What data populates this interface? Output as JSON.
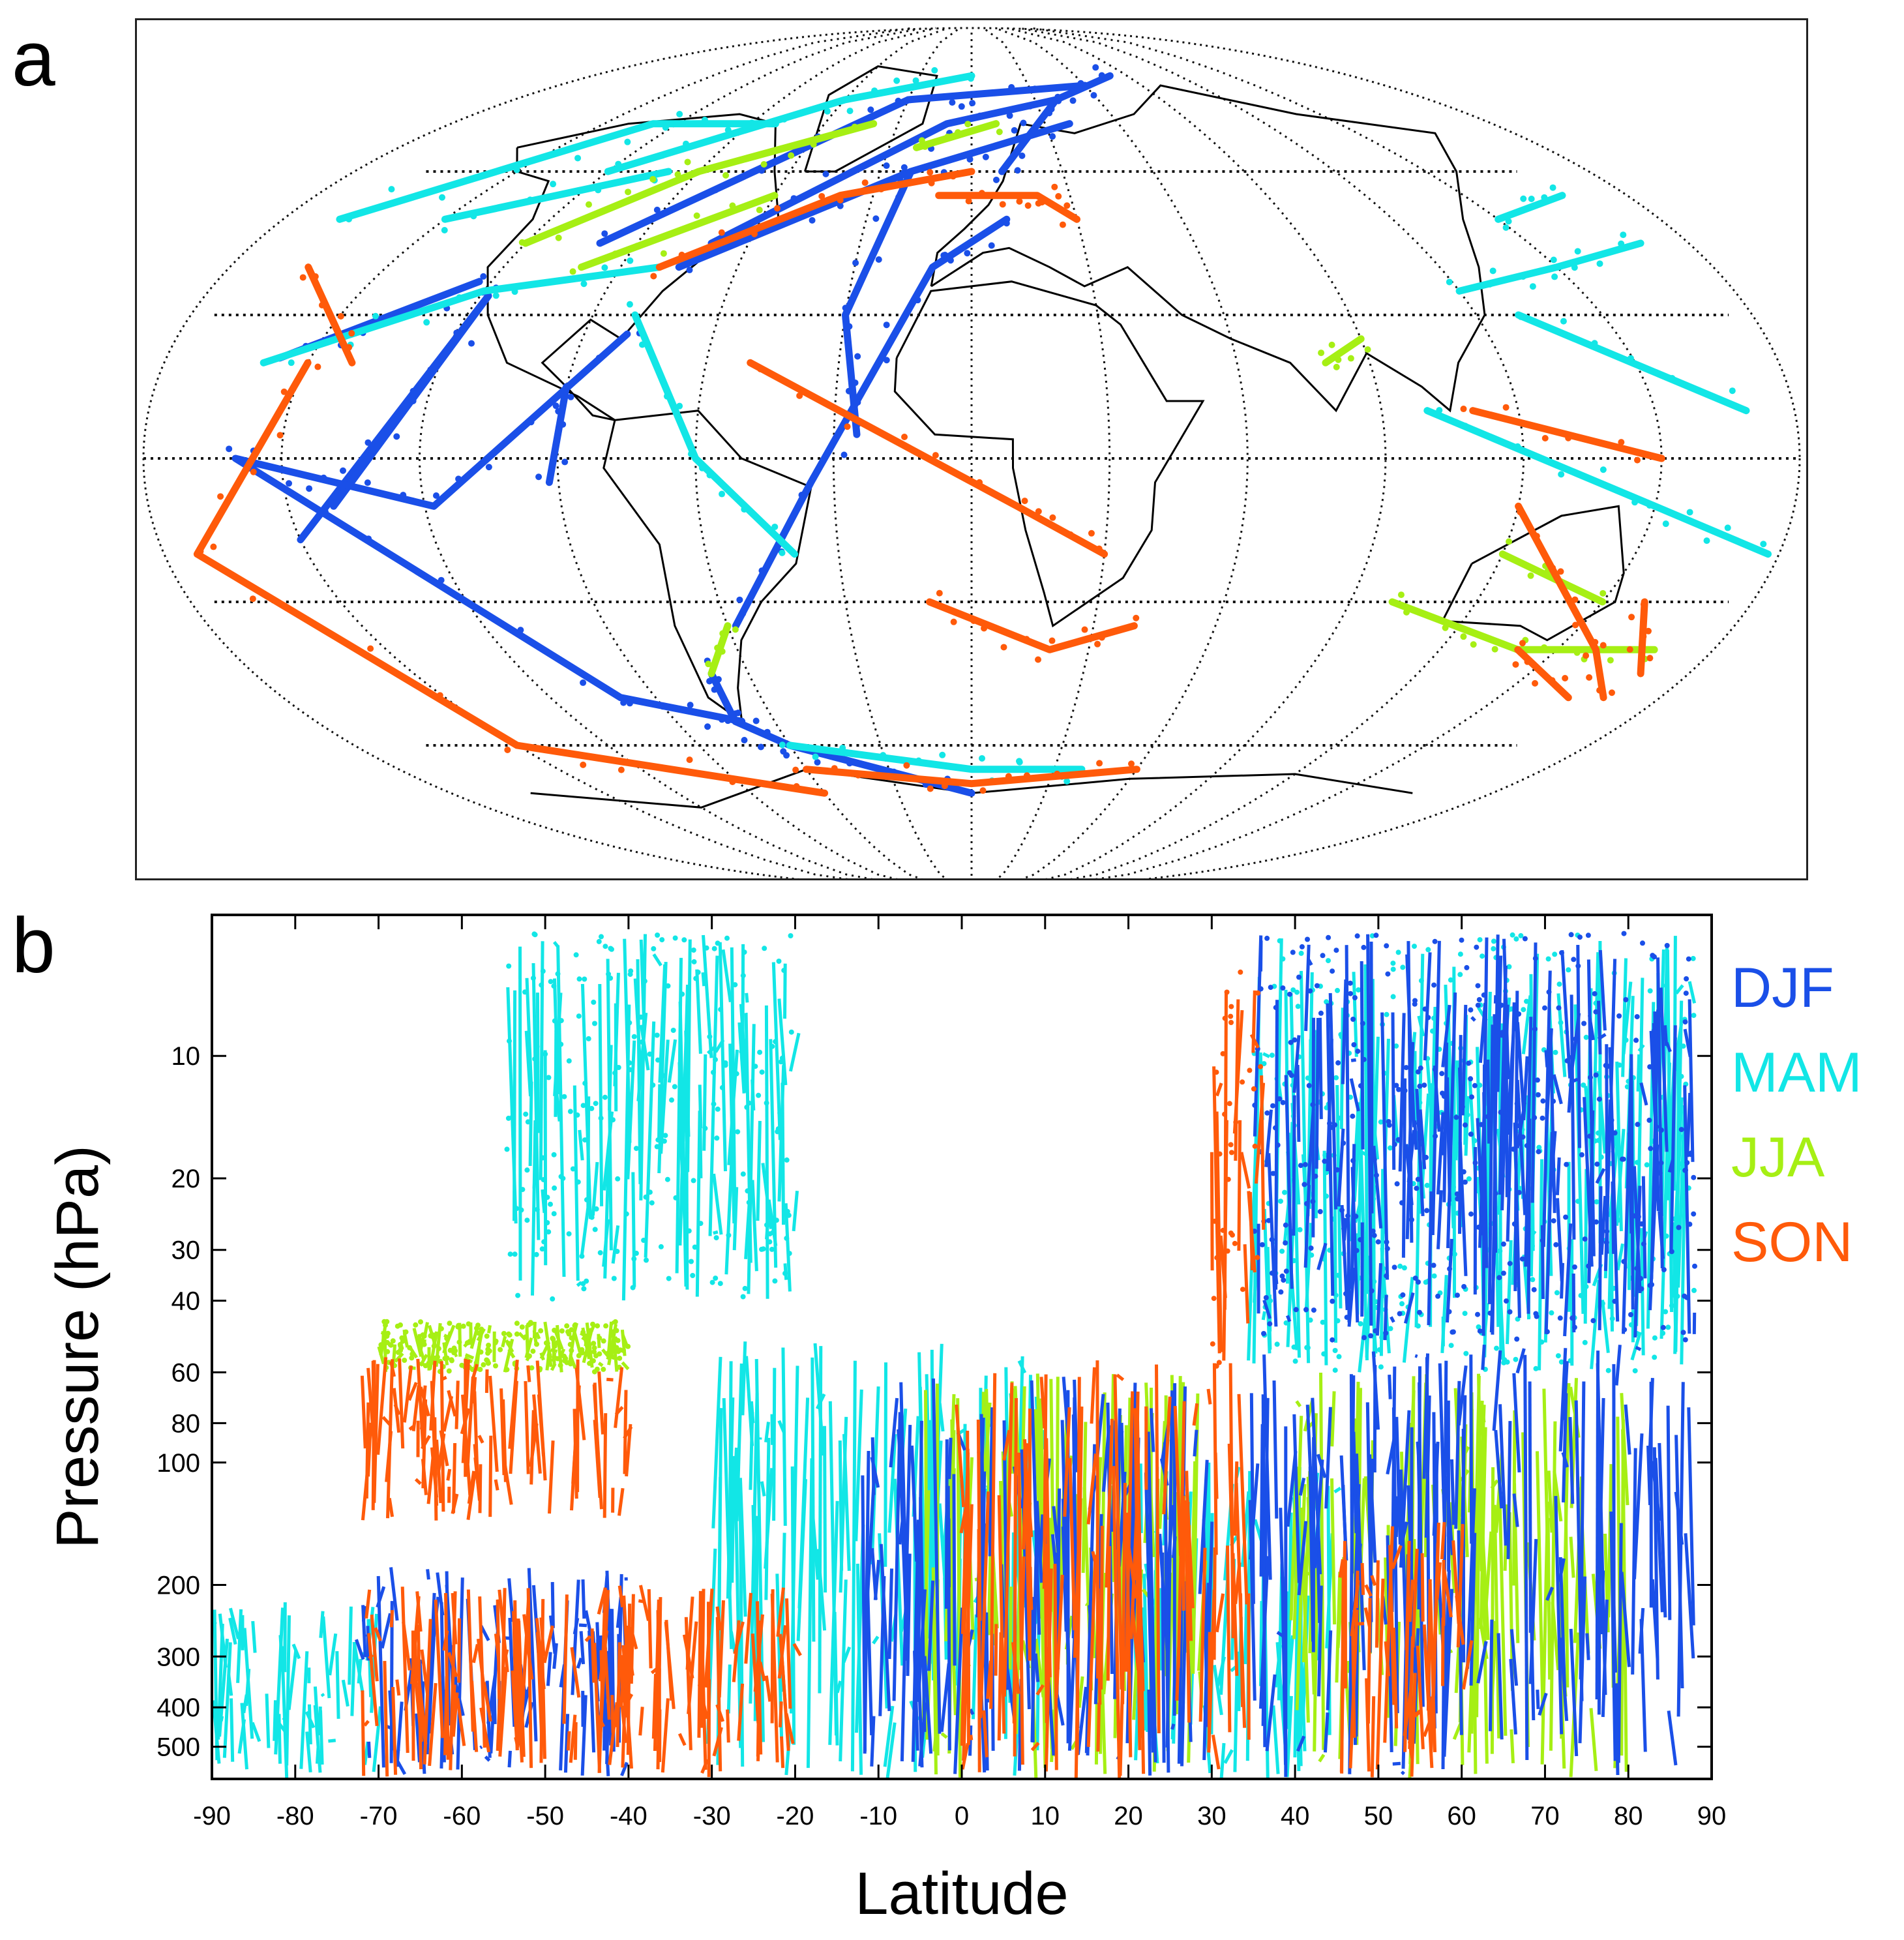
{
  "panels": {
    "a": "a",
    "b": "b"
  },
  "colors": {
    "DJF": "#1a4fe8",
    "MAM": "#12e6e6",
    "JJA": "#a6ef14",
    "SON": "#ff5a0a",
    "grid": "#111111",
    "coast": "#000000"
  },
  "chart_data": [
    {
      "panel": "a",
      "type": "scatter",
      "title": "",
      "xlabel": "",
      "ylabel": "",
      "projection": "Robinson",
      "xlim": [
        -180,
        180
      ],
      "ylim": [
        -90,
        90
      ],
      "graticule_lon": [
        -150,
        -120,
        -90,
        -60,
        -30,
        0,
        30,
        60,
        90,
        120,
        150
      ],
      "graticule_lat": [
        -60,
        -30,
        0,
        30,
        60
      ],
      "series": [
        {
          "name": "DJF",
          "tracks": [
            [
              [
                -123,
                37
              ],
              [
                -157,
                21
              ]
            ],
            [
              [
                -118,
                34
              ],
              [
                -150,
                -17
              ]
            ],
            [
              [
                -118,
                34
              ],
              [
                -140,
                -10
              ]
            ],
            [
              [
                -80,
                26
              ],
              [
                -118,
                -10
              ],
              [
                -160,
                0
              ],
              [
                -100,
                -50
              ],
              [
                -70,
                -55
              ]
            ],
            [
              [
                -75,
                40
              ],
              [
                -20,
                60
              ],
              [
                40,
                70
              ]
            ],
            [
              [
                -70,
                45
              ],
              [
                -10,
                70
              ],
              [
                40,
                75
              ]
            ],
            [
              [
                -100,
                45
              ],
              [
                -30,
                75
              ],
              [
                60,
                78
              ]
            ],
            [
              [
                -70,
                -45
              ],
              [
                -72,
                -55
              ],
              [
                -60,
                -60
              ],
              [
                0,
                -70
              ]
            ],
            [
              [
                -58,
                -35
              ],
              [
                -35,
                -5
              ],
              [
                -10,
                40
              ],
              [
                10,
                50
              ]
            ],
            [
              [
                -90,
                15
              ],
              [
                -92,
                -5
              ]
            ],
            [
              [
                10,
                60
              ],
              [
                40,
                75
              ],
              [
                80,
                80
              ]
            ],
            [
              [
                -20,
                60
              ],
              [
                -30,
                30
              ],
              [
                -25,
                5
              ]
            ]
          ]
        },
        {
          "name": "MAM",
          "tracks": [
            [
              [
                -160,
                20
              ],
              [
                -120,
                35
              ],
              [
                -80,
                40
              ]
            ],
            [
              [
                -180,
                50
              ],
              [
                -130,
                70
              ],
              [
                -80,
                70
              ]
            ],
            [
              [
                120,
                35
              ],
              [
                150,
                40
              ],
              [
                180,
                45
              ]
            ],
            [
              [
                130,
                30
              ],
              [
                170,
                10
              ]
            ],
            [
              [
                -150,
                50
              ],
              [
                -100,
                60
              ]
            ],
            [
              [
                -60,
                -60
              ],
              [
                0,
                -65
              ],
              [
                40,
                -65
              ]
            ],
            [
              [
                -80,
                30
              ],
              [
                -60,
                0
              ],
              [
                -40,
                -20
              ]
            ],
            [
              [
                100,
                10
              ],
              [
                150,
                -10
              ],
              [
                180,
                -20
              ]
            ],
            [
              [
                -120,
                60
              ],
              [
                -60,
                75
              ],
              [
                0,
                80
              ]
            ],
            [
              [
                150,
                50
              ],
              [
                180,
                55
              ]
            ]
          ]
        },
        {
          "name": "JJA",
          "tracks": [
            [
              [
                -120,
                45
              ],
              [
                -90,
                60
              ],
              [
                -40,
                70
              ]
            ],
            [
              [
                -60,
                -35
              ],
              [
                -70,
                -45
              ]
            ],
            [
              [
                100,
                -30
              ],
              [
                140,
                -40
              ],
              [
                175,
                -40
              ]
            ],
            [
              [
                120,
                -20
              ],
              [
                150,
                -30
              ]
            ],
            [
              [
                -20,
                65
              ],
              [
                10,
                70
              ]
            ],
            [
              [
                80,
                20
              ],
              [
                90,
                25
              ]
            ],
            [
              [
                -100,
                40
              ],
              [
                -60,
                55
              ]
            ]
          ]
        },
        {
          "name": "SON",
          "tracks": [
            [
              [
                -150,
                20
              ],
              [
                -175,
                -20
              ],
              [
                -150,
                -60
              ],
              [
                -60,
                -70
              ]
            ],
            [
              [
                -60,
                -65
              ],
              [
                0,
                -68
              ],
              [
                60,
                -65
              ]
            ],
            [
              [
                -50,
                20
              ],
              [
                10,
                -10
              ],
              [
                30,
                -20
              ]
            ],
            [
              [
                -10,
                55
              ],
              [
                20,
                55
              ],
              [
                30,
                50
              ]
            ],
            [
              [
                -80,
                40
              ],
              [
                -40,
                55
              ],
              [
                0,
                60
              ]
            ],
            [
              [
                -10,
                -30
              ],
              [
                20,
                -40
              ],
              [
                40,
                -35
              ]
            ],
            [
              [
                160,
                -30
              ],
              [
                180,
                -45
              ]
            ],
            [
              [
                120,
                -10
              ],
              [
                160,
                -40
              ],
              [
                180,
                -50
              ]
            ],
            [
              [
                140,
                -40
              ],
              [
                170,
                -50
              ]
            ],
            [
              [
                -170,
                40
              ],
              [
                -140,
                20
              ]
            ],
            [
              [
                110,
                10
              ],
              [
                150,
                0
              ]
            ]
          ]
        }
      ]
    },
    {
      "panel": "b",
      "type": "scatter",
      "title": "",
      "xlabel": "Latitude",
      "ylabel": "Pressure (hPa)",
      "xlim": [
        -90,
        90
      ],
      "ylim": [
        600,
        4.5
      ],
      "yscale": "log",
      "xticks": [
        "-90",
        "-80",
        "-70",
        "-60",
        "-50",
        "-40",
        "-30",
        "-20",
        "-10",
        "0",
        "10",
        "20",
        "30",
        "40",
        "50",
        "60",
        "70",
        "80",
        "90"
      ],
      "yticks": [
        "10",
        "20",
        "30",
        "40",
        "60",
        "80",
        "100",
        "200",
        "300",
        "400",
        "500"
      ],
      "legend": {
        "position": "right",
        "entries": [
          "DJF",
          "MAM",
          "JJA",
          "SON"
        ]
      },
      "series": [
        {
          "name": "DJF",
          "regions": [
            {
              "lat": [
                -72,
                -40
              ],
              "p": [
                180,
                600
              ]
            },
            {
              "lat": [
                -12,
                30
              ],
              "p": [
                60,
                600
              ]
            },
            {
              "lat": [
                35,
                88
              ],
              "p": [
                50,
                600
              ]
            },
            {
              "lat": [
                35,
                88
              ],
              "p": [
                5,
                50
              ]
            }
          ]
        },
        {
          "name": "MAM",
          "regions": [
            {
              "lat": [
                -90,
                -70
              ],
              "p": [
                220,
                600
              ]
            },
            {
              "lat": [
                -55,
                -20
              ],
              "p": [
                5,
                40
              ]
            },
            {
              "lat": [
                20,
                45
              ],
              "p": [
                100,
                600
              ]
            },
            {
              "lat": [
                35,
                88
              ],
              "p": [
                5,
                60
              ]
            },
            {
              "lat": [
                -30,
                10
              ],
              "p": [
                50,
                600
              ]
            }
          ]
        },
        {
          "name": "JJA",
          "regions": [
            {
              "lat": [
                -70,
                -40
              ],
              "p": [
                45,
                60
              ]
            },
            {
              "lat": [
                -5,
                30
              ],
              "p": [
                60,
                600
              ]
            },
            {
              "lat": [
                40,
                80
              ],
              "p": [
                60,
                600
              ]
            }
          ]
        },
        {
          "name": "SON",
          "regions": [
            {
              "lat": [
                -72,
                -40
              ],
              "p": [
                55,
                140
              ]
            },
            {
              "lat": [
                -72,
                -20
              ],
              "p": [
                200,
                600
              ]
            },
            {
              "lat": [
                0,
                35
              ],
              "p": [
                55,
                600
              ]
            },
            {
              "lat": [
                30,
                36
              ],
              "p": [
                5,
                60
              ]
            },
            {
              "lat": [
                45,
                62
              ],
              "p": [
                140,
                600
              ]
            }
          ]
        }
      ]
    }
  ]
}
